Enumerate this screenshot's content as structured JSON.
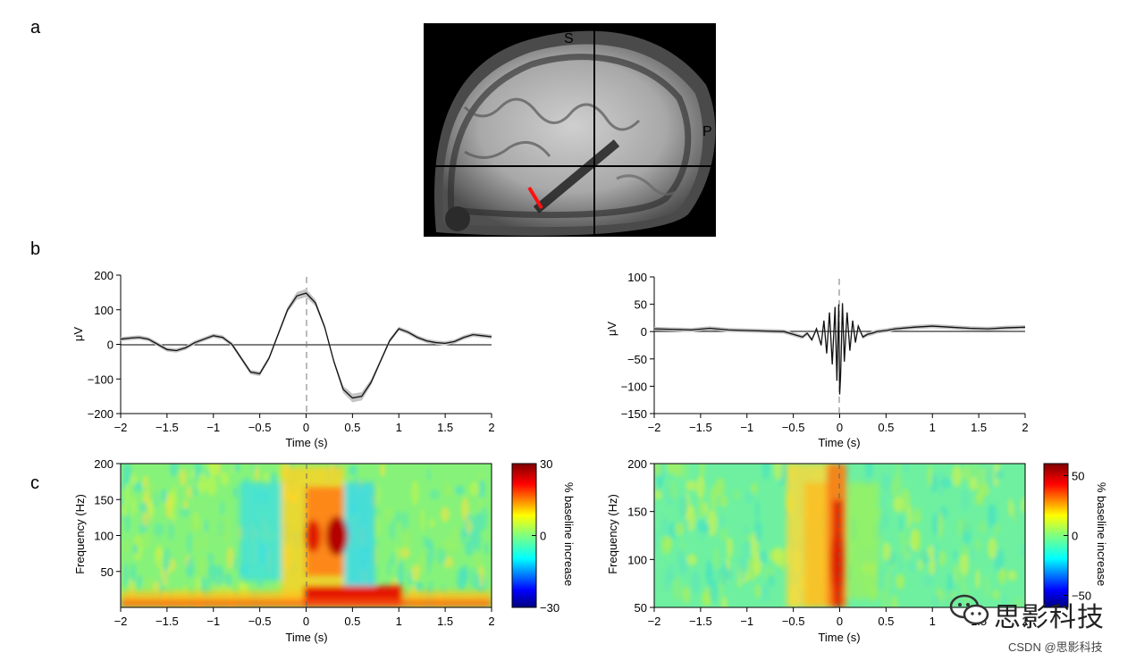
{
  "panels": {
    "a": "a",
    "b": "b",
    "c": "c"
  },
  "mri": {
    "orient_top": "S",
    "orient_right": "P"
  },
  "watermark": {
    "brand": "思影科技",
    "footer": "CSDN @思影科技"
  },
  "chart_data": [
    {
      "id": "b-left",
      "type": "line",
      "xlabel": "Time (s)",
      "ylabel": "μV",
      "xlim": [
        -2,
        2
      ],
      "ylim": [
        -200,
        200
      ],
      "xticks": [
        "−2",
        "−1.5",
        "−1",
        "−0.5",
        "0",
        "0.5",
        "1",
        "1.5",
        "2"
      ],
      "yticks": [
        "200",
        "100",
        "0",
        "−100",
        "−200"
      ],
      "series": [
        {
          "x": [
            -2,
            -1.9,
            -1.8,
            -1.7,
            -1.6,
            -1.5,
            -1.4,
            -1.3,
            -1.2,
            -1.1,
            -1.0,
            -0.9,
            -0.8,
            -0.7,
            -0.6,
            -0.5,
            -0.4,
            -0.3,
            -0.2,
            -0.1,
            0,
            0.1,
            0.2,
            0.3,
            0.4,
            0.5,
            0.6,
            0.7,
            0.8,
            0.9,
            1.0,
            1.1,
            1.2,
            1.3,
            1.4,
            1.5,
            1.6,
            1.7,
            1.8,
            1.9,
            2.0
          ],
          "y": [
            15,
            18,
            20,
            15,
            0,
            -15,
            -18,
            -10,
            5,
            15,
            25,
            20,
            0,
            -40,
            -80,
            -85,
            -40,
            30,
            100,
            140,
            148,
            120,
            50,
            -50,
            -130,
            -155,
            -150,
            -110,
            -50,
            10,
            45,
            35,
            20,
            10,
            5,
            3,
            8,
            20,
            28,
            25,
            22
          ]
        }
      ]
    },
    {
      "id": "b-right",
      "type": "line",
      "xlabel": "Time (s)",
      "ylabel": "μV",
      "xlim": [
        -2,
        2
      ],
      "ylim": [
        -150,
        100
      ],
      "xticks": [
        "−2",
        "−1.5",
        "−1",
        "−0.5",
        "0",
        "0.5",
        "1",
        "1.5",
        "2"
      ],
      "yticks": [
        "100",
        "50",
        "0",
        "−50",
        "−100",
        "−150"
      ],
      "series": [
        {
          "x": [
            -2,
            -1.8,
            -1.6,
            -1.4,
            -1.2,
            -1.0,
            -0.8,
            -0.6,
            -0.5,
            -0.4,
            -0.35,
            -0.3,
            -0.25,
            -0.2,
            -0.17,
            -0.14,
            -0.11,
            -0.08,
            -0.05,
            -0.03,
            -0.01,
            0,
            0.01,
            0.03,
            0.05,
            0.08,
            0.11,
            0.14,
            0.17,
            0.2,
            0.25,
            0.3,
            0.35,
            0.4,
            0.5,
            0.6,
            0.8,
            1.0,
            1.2,
            1.4,
            1.6,
            1.8,
            2.0
          ],
          "y": [
            5,
            4,
            3,
            6,
            3,
            2,
            1,
            0,
            -5,
            -10,
            -3,
            -15,
            5,
            -25,
            20,
            -40,
            35,
            -60,
            45,
            -90,
            50,
            -115,
            -80,
            52,
            -55,
            35,
            -35,
            20,
            -20,
            10,
            -10,
            -5,
            -3,
            0,
            2,
            5,
            8,
            10,
            8,
            6,
            5,
            7,
            8
          ]
        }
      ]
    },
    {
      "id": "c-left",
      "type": "heatmap",
      "xlabel": "Time (s)",
      "ylabel": "Frequency (Hz)",
      "xlim": [
        -2,
        2
      ],
      "ylim": [
        0,
        200
      ],
      "xticks": [
        "−2",
        "−1.5",
        "−1",
        "−0.5",
        "0",
        "0.5",
        "1",
        "1.5",
        "2"
      ],
      "yticks": [
        "200",
        "150",
        "100",
        "50"
      ],
      "colorbar": {
        "label": "% baseline increase",
        "ticks": [
          "30",
          "0",
          "−30"
        ],
        "range": [
          -30,
          30
        ]
      }
    },
    {
      "id": "c-right",
      "type": "heatmap",
      "xlabel": "Time (s)",
      "ylabel": "Frequency (Hz)",
      "xlim": [
        -2,
        2
      ],
      "ylim": [
        50,
        200
      ],
      "xticks": [
        "−2",
        "−1.5",
        "−1",
        "−0.5",
        "0",
        "0.5",
        "1",
        "1.5",
        "2"
      ],
      "yticks": [
        "200",
        "150",
        "100",
        "50"
      ],
      "colorbar": {
        "label": "% baseline increase",
        "ticks": [
          "50",
          "0",
          "−50"
        ],
        "range": [
          -60,
          60
        ]
      }
    }
  ]
}
